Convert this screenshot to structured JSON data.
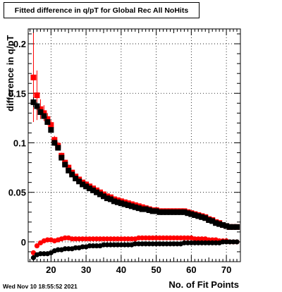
{
  "title": "Fitted difference in q/pT for Global Rec All NoHits",
  "timestamp": "Wed Nov 10 18:55:52 2021",
  "chart_data": {
    "type": "scatter",
    "title": "Fitted difference in q/pT for Global Rec All NoHits",
    "xlabel": "No. of Fit Points",
    "ylabel": "difference in q/pT",
    "xlim": [
      13.5,
      74.0
    ],
    "ylim": [
      -0.02,
      0.215
    ],
    "grid": true,
    "x_ticks": [
      20,
      30,
      40,
      50,
      60,
      70
    ],
    "y_ticks": [
      0,
      0.05,
      0.1,
      0.15,
      0.2
    ],
    "series": [
      {
        "color": "#ff0000",
        "marker": "square",
        "x": [
          15,
          16,
          17,
          18,
          19,
          20,
          21,
          22,
          23,
          24,
          25,
          26,
          27,
          28,
          29,
          30,
          31,
          32,
          33,
          34,
          35,
          36,
          37,
          38,
          39,
          40,
          41,
          42,
          43,
          44,
          45,
          46,
          47,
          48,
          49,
          50,
          51,
          52,
          53,
          54,
          55,
          56,
          57,
          58,
          59,
          60,
          61,
          62,
          63,
          64,
          65,
          66,
          67,
          68,
          69,
          70,
          71,
          72,
          73
        ],
        "y": [
          0.166,
          0.148,
          0.134,
          0.13,
          0.124,
          0.118,
          0.103,
          0.097,
          0.087,
          0.08,
          0.075,
          0.07,
          0.066,
          0.063,
          0.06,
          0.058,
          0.056,
          0.054,
          0.052,
          0.05,
          0.048,
          0.046,
          0.045,
          0.043,
          0.042,
          0.041,
          0.04,
          0.039,
          0.038,
          0.037,
          0.036,
          0.035,
          0.034,
          0.033,
          0.032,
          0.032,
          0.031,
          0.031,
          0.031,
          0.031,
          0.031,
          0.031,
          0.031,
          0.031,
          0.03,
          0.029,
          0.028,
          0.027,
          0.026,
          0.025,
          0.023,
          0.022,
          0.02,
          0.019,
          0.017,
          0.016,
          0.015,
          0.015,
          0.015
        ],
        "y_err": [
          0.045,
          0.025,
          0.01,
          0.008,
          0.006,
          0.005,
          0.004,
          0.004,
          0.003,
          0.003,
          0.003,
          0.002,
          0.002,
          0.002,
          0.002,
          0.002,
          0.002,
          0.002,
          0.002,
          0.002,
          0.002,
          0.002,
          0.002,
          0.002,
          0.002,
          0.002,
          0.002,
          0.002,
          0.002,
          0.002,
          0.002,
          0.002,
          0.002,
          0.002,
          0.002,
          0.002,
          0.002,
          0.002,
          0.002,
          0.002,
          0.002,
          0.002,
          0.002,
          0.002,
          0.002,
          0.002,
          0.002,
          0.002,
          0.002,
          0.002,
          0.002,
          0.002,
          0.002,
          0.002,
          0.002,
          0.002,
          0.002,
          0.002,
          0.002
        ]
      },
      {
        "color": "#000000",
        "marker": "square",
        "x": [
          15,
          16,
          17,
          18,
          19,
          20,
          21,
          22,
          23,
          24,
          25,
          26,
          27,
          28,
          29,
          30,
          31,
          32,
          33,
          34,
          35,
          36,
          37,
          38,
          39,
          40,
          41,
          42,
          43,
          44,
          45,
          46,
          47,
          48,
          49,
          50,
          51,
          52,
          53,
          54,
          55,
          56,
          57,
          58,
          59,
          60,
          61,
          62,
          63,
          64,
          65,
          66,
          67,
          68,
          69,
          70,
          71,
          72,
          73
        ],
        "y": [
          0.141,
          0.137,
          0.131,
          0.127,
          0.121,
          0.113,
          0.1,
          0.095,
          0.085,
          0.078,
          0.072,
          0.068,
          0.064,
          0.061,
          0.058,
          0.056,
          0.054,
          0.052,
          0.05,
          0.048,
          0.046,
          0.044,
          0.043,
          0.041,
          0.04,
          0.039,
          0.038,
          0.037,
          0.036,
          0.035,
          0.034,
          0.033,
          0.033,
          0.032,
          0.031,
          0.031,
          0.03,
          0.03,
          0.03,
          0.03,
          0.03,
          0.03,
          0.03,
          0.03,
          0.029,
          0.028,
          0.027,
          0.026,
          0.025,
          0.024,
          0.022,
          0.021,
          0.019,
          0.018,
          0.017,
          0.016,
          0.015,
          0.015,
          0.015
        ],
        "y_err": [
          0.005,
          0.004,
          0.003,
          0.003,
          0.003,
          0.003,
          0.003,
          0.002,
          0.002,
          0.002,
          0.002,
          0.002,
          0.002,
          0.002,
          0.002,
          0.002,
          0.002,
          0.002,
          0.002,
          0.002,
          0.002,
          0.002,
          0.002,
          0.002,
          0.002,
          0.002,
          0.002,
          0.002,
          0.002,
          0.002,
          0.002,
          0.002,
          0.002,
          0.002,
          0.002,
          0.002,
          0.002,
          0.002,
          0.002,
          0.002,
          0.002,
          0.002,
          0.002,
          0.002,
          0.002,
          0.002,
          0.002,
          0.002,
          0.002,
          0.002,
          0.002,
          0.002,
          0.002,
          0.002,
          0.002,
          0.002,
          0.002,
          0.002,
          0.002
        ]
      },
      {
        "color": "#ff0000",
        "marker": "circle",
        "x": [
          15,
          16,
          17,
          18,
          19,
          20,
          21,
          22,
          23,
          24,
          25,
          26,
          27,
          28,
          29,
          30,
          31,
          32,
          33,
          34,
          35,
          36,
          37,
          38,
          39,
          40,
          41,
          42,
          43,
          44,
          45,
          46,
          47,
          48,
          49,
          50,
          51,
          52,
          53,
          54,
          55,
          56,
          57,
          58,
          59,
          60,
          61,
          62,
          63,
          64,
          65,
          66,
          67,
          68,
          69,
          70,
          71,
          72,
          73
        ],
        "y": [
          -0.011,
          -0.004,
          -0.001,
          0.001,
          0.002,
          0.002,
          0.001,
          0.002,
          0.003,
          0.004,
          0.004,
          0.003,
          0.003,
          0.003,
          0.003,
          0.003,
          0.003,
          0.003,
          0.003,
          0.003,
          0.003,
          0.003,
          0.003,
          0.003,
          0.003,
          0.003,
          0.003,
          0.003,
          0.003,
          0.003,
          0.004,
          0.004,
          0.004,
          0.004,
          0.004,
          0.004,
          0.004,
          0.004,
          0.004,
          0.004,
          0.004,
          0.004,
          0.004,
          0.004,
          0.004,
          0.004,
          0.003,
          0.003,
          0.003,
          0.003,
          0.002,
          0.002,
          0.002,
          0.001,
          0.001,
          0.001,
          0.0,
          0.0,
          0.0
        ]
      },
      {
        "color": "#000000",
        "marker": "circle",
        "x": [
          15,
          16,
          17,
          18,
          19,
          20,
          21,
          22,
          23,
          24,
          25,
          26,
          27,
          28,
          29,
          30,
          31,
          32,
          33,
          34,
          35,
          36,
          37,
          38,
          39,
          40,
          41,
          42,
          43,
          44,
          45,
          46,
          47,
          48,
          49,
          50,
          51,
          52,
          53,
          54,
          55,
          56,
          57,
          58,
          59,
          60,
          61,
          62,
          63,
          64,
          65,
          66,
          67,
          68,
          69,
          70,
          71,
          72,
          73
        ],
        "y": [
          -0.016,
          -0.013,
          -0.012,
          -0.012,
          -0.012,
          -0.011,
          -0.009,
          -0.008,
          -0.008,
          -0.007,
          -0.007,
          -0.007,
          -0.006,
          -0.006,
          -0.005,
          -0.005,
          -0.004,
          -0.004,
          -0.004,
          -0.004,
          -0.003,
          -0.003,
          -0.003,
          -0.003,
          -0.003,
          -0.003,
          -0.003,
          -0.003,
          -0.003,
          -0.002,
          -0.002,
          -0.002,
          -0.002,
          -0.002,
          -0.002,
          -0.002,
          -0.002,
          -0.002,
          -0.002,
          -0.002,
          -0.002,
          -0.002,
          -0.002,
          -0.001,
          -0.001,
          -0.001,
          -0.001,
          -0.001,
          -0.001,
          -0.001,
          -0.001,
          -0.001,
          -0.001,
          -0.001,
          0.0,
          0.0,
          0.0,
          0.0,
          0.0
        ]
      }
    ]
  }
}
